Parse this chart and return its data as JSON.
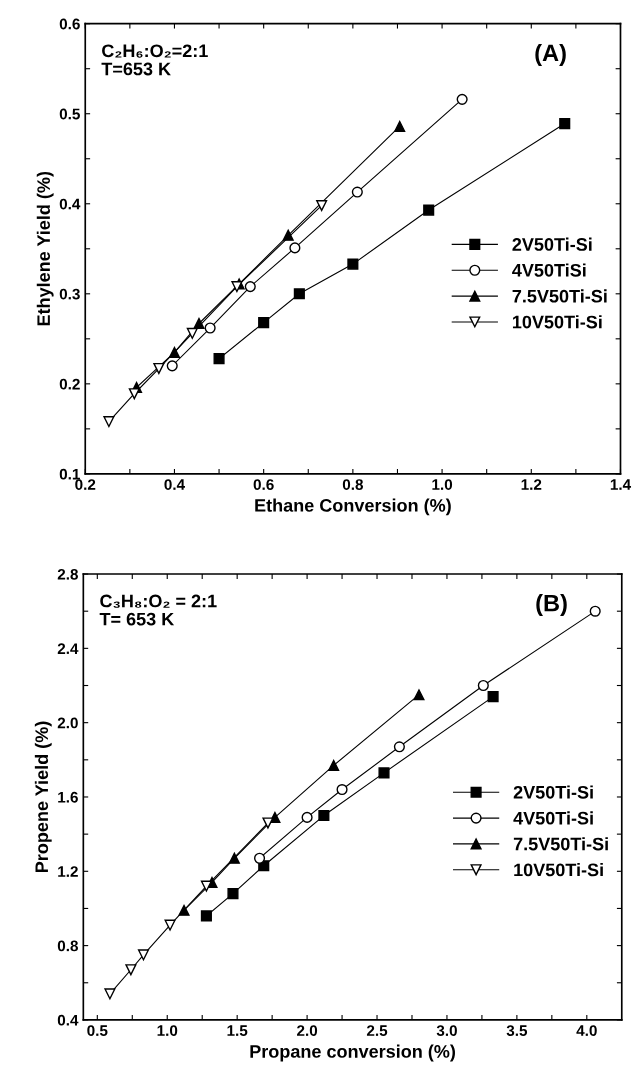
{
  "chart_data": [
    {
      "type": "line",
      "xlabel": "Ethane Conversion (%)",
      "ylabel": "Ethylene Yield (%)",
      "annotations": [
        "C₂H₆:O₂=2:1\nT=653 K",
        "(A)"
      ],
      "legend": "right",
      "line_style": "solid",
      "grid": false,
      "xlim": [
        0.2,
        1.4
      ],
      "xticks": [
        0.2,
        {
          "value": 0.3,
          "label": null
        },
        0.4,
        {
          "value": 0.5,
          "label": null
        },
        0.6,
        {
          "value": 0.7,
          "label": null
        },
        0.8,
        {
          "value": 0.9,
          "label": null
        },
        {
          "value": 1.0,
          "label": "1.0"
        },
        {
          "value": 1.1,
          "label": null
        },
        1.2,
        {
          "value": 1.3,
          "label": null
        },
        1.4
      ],
      "ylim": [
        0.1,
        0.6
      ],
      "yticks": [
        0.1,
        {
          "value": 0.15,
          "label": null
        },
        0.2,
        {
          "value": 0.25,
          "label": null
        },
        0.3,
        {
          "value": 0.35,
          "label": null
        },
        0.4,
        {
          "value": 0.45,
          "label": null
        },
        0.5,
        {
          "value": 0.55,
          "label": null
        },
        0.6
      ],
      "series": [
        {
          "name": "2V50Ti-Si",
          "color": "#000000",
          "marker": "square",
          "x": [
            0.5,
            0.6,
            0.68,
            0.8,
            0.97,
            1.275
          ],
          "values": [
            0.228,
            0.268,
            0.3,
            0.333,
            0.393,
            0.489
          ]
        },
        {
          "name": "4V50TiSi",
          "color": "#000000",
          "marker": "circle",
          "x": [
            0.395,
            0.48,
            0.57,
            0.67,
            0.81,
            1.045
          ],
          "values": [
            0.22,
            0.262,
            0.308,
            0.351,
            0.413,
            0.516
          ]
        },
        {
          "name": "7.5V50Ti-Si",
          "color": "#000000",
          "marker": "triangle",
          "x": [
            0.315,
            0.4,
            0.455,
            0.545,
            0.655,
            0.905
          ],
          "values": [
            0.196,
            0.235,
            0.267,
            0.311,
            0.365,
            0.486
          ]
        },
        {
          "name": "10V50Ti-Si",
          "color": "#000000",
          "marker": "triangle_down",
          "x": [
            0.253,
            0.31,
            0.365,
            0.44,
            0.54,
            0.73
          ],
          "values": [
            0.158,
            0.189,
            0.217,
            0.256,
            0.308,
            0.398
          ]
        }
      ]
    },
    {
      "type": "line",
      "xlabel": "Propane conversion (%)",
      "ylabel": "Propene Yield (%)",
      "annotations": [
        "C₃H₈:O₂ = 2:1\nT= 653 K",
        "(B)"
      ],
      "legend": "right",
      "line_style": "solid",
      "grid": false,
      "xlim": [
        0.4,
        4.25
      ],
      "xticks": [
        0.5,
        {
          "value": 0.75,
          "label": null
        },
        {
          "value": 1.0,
          "label": "1.0"
        },
        {
          "value": 1.25,
          "label": null
        },
        1.5,
        {
          "value": 1.75,
          "label": null
        },
        {
          "value": 2.0,
          "label": "2.0"
        },
        {
          "value": 2.25,
          "label": null
        },
        2.5,
        {
          "value": 2.75,
          "label": null
        },
        {
          "value": 3.0,
          "label": "3.0"
        },
        {
          "value": 3.25,
          "label": null
        },
        3.5,
        {
          "value": 3.75,
          "label": null
        },
        {
          "value": 4.0,
          "label": "4.0"
        }
      ],
      "ylim": [
        0.4,
        2.8
      ],
      "yticks": [
        0.4,
        {
          "value": 0.6,
          "label": null
        },
        0.8,
        {
          "value": 1.0,
          "label": null
        },
        1.2,
        {
          "value": 1.4,
          "label": null
        },
        1.6,
        {
          "value": 1.8,
          "label": null
        },
        {
          "value": 2.0,
          "label": "2.0"
        },
        {
          "value": 2.2,
          "label": null
        },
        2.4,
        {
          "value": 2.6,
          "label": null
        },
        2.8
      ],
      "series": [
        {
          "name": "2V50Ti-Si",
          "color": "#000000",
          "marker": "square",
          "x": [
            1.28,
            1.47,
            1.69,
            2.12,
            2.55,
            3.33
          ],
          "values": [
            0.96,
            1.08,
            1.23,
            1.5,
            1.73,
            2.14
          ]
        },
        {
          "name": "4V50Ti-Si",
          "color": "#000000",
          "marker": "circle",
          "x": [
            1.66,
            2.0,
            2.25,
            2.66,
            3.26,
            4.06
          ],
          "values": [
            1.27,
            1.49,
            1.64,
            1.87,
            2.2,
            2.6
          ]
        },
        {
          "name": "7.5V50Ti-Si",
          "color": "#000000",
          "marker": "triangle",
          "x": [
            1.12,
            1.32,
            1.48,
            1.77,
            2.19,
            2.8
          ],
          "values": [
            0.99,
            1.14,
            1.27,
            1.49,
            1.77,
            2.15
          ]
        },
        {
          "name": "10V50Ti-Si",
          "color": "#000000",
          "marker": "triangle_down",
          "x": [
            0.59,
            0.74,
            0.83,
            1.02,
            1.28,
            1.72
          ],
          "values": [
            0.54,
            0.67,
            0.75,
            0.91,
            1.12,
            1.46
          ]
        }
      ]
    }
  ]
}
